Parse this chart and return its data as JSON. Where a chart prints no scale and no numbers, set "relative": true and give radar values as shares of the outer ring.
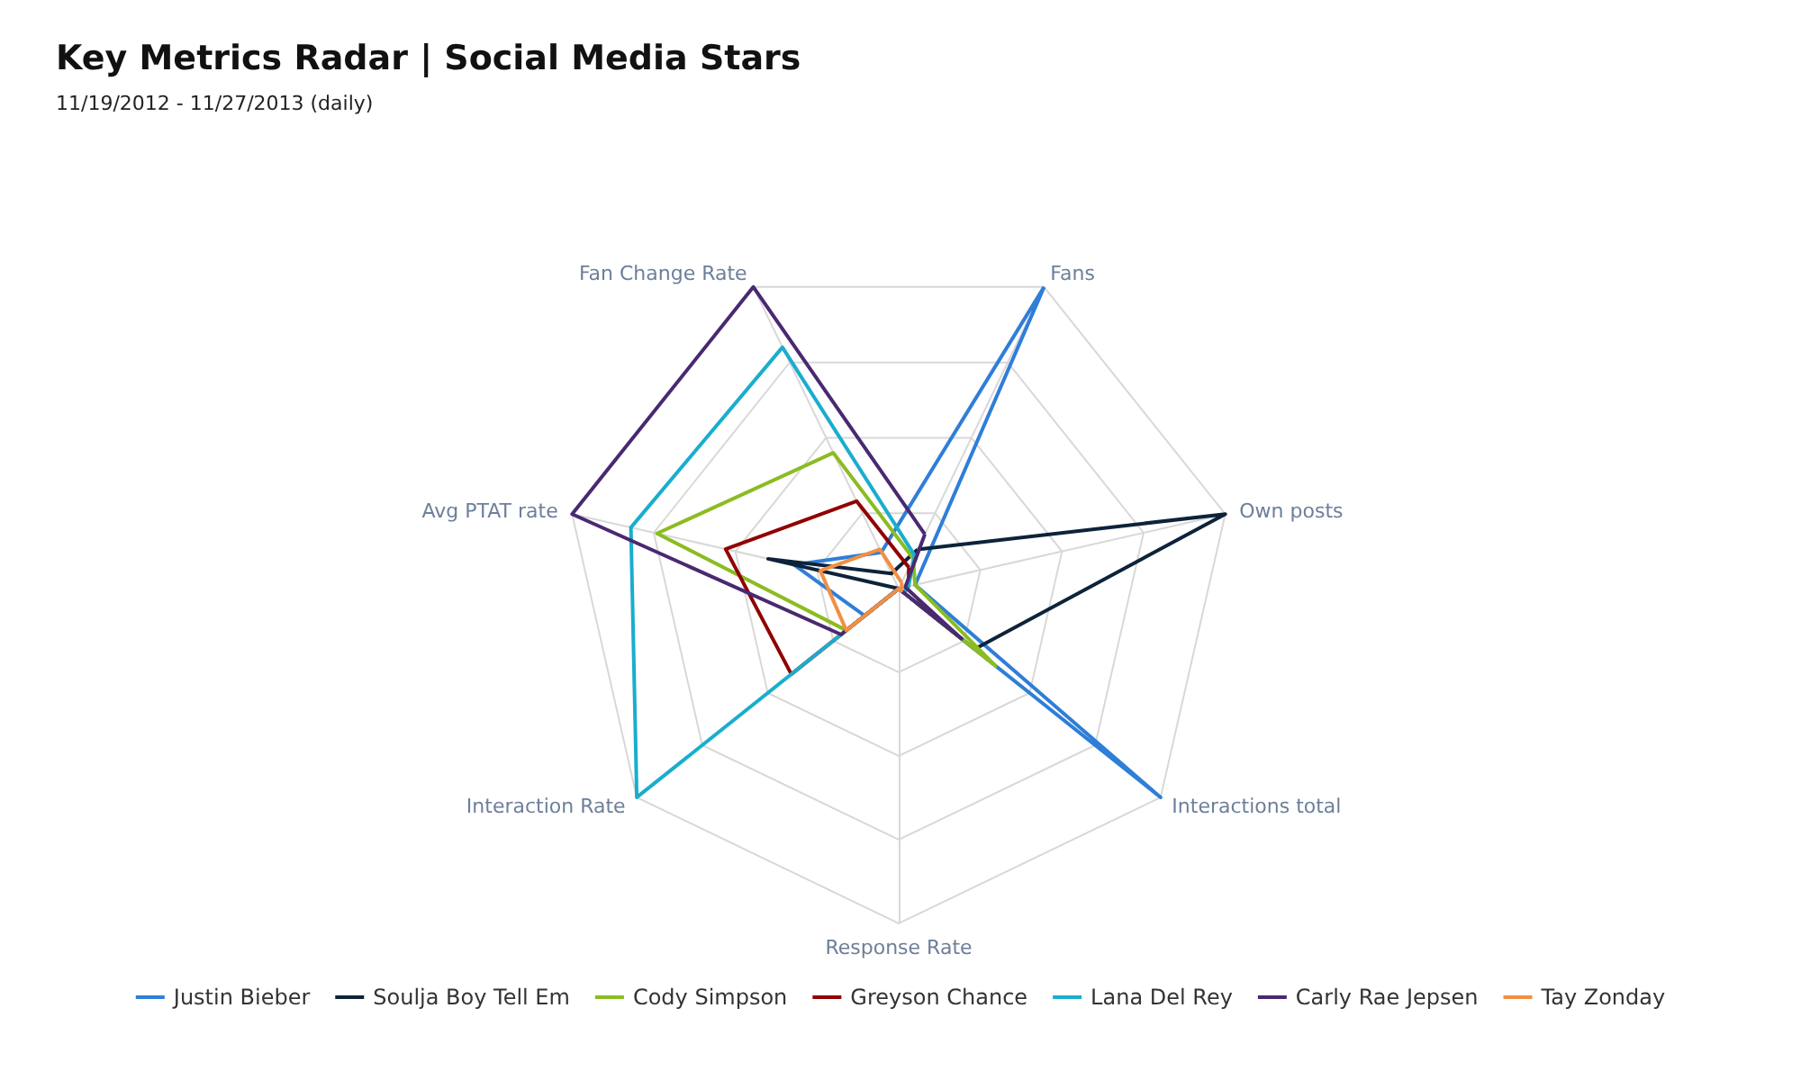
{
  "chart_data": {
    "type": "radar",
    "title": "Key Metrics Radar | Social Media Stars",
    "subtitle": "11/19/2012 - 11/27/2013 (daily)",
    "categories": [
      "Fans",
      "Own posts",
      "Interactions total",
      "Response Rate",
      "Interaction Rate",
      "Avg PTAT rate",
      "Fan Change Rate"
    ],
    "relative": true,
    "grid": true,
    "legend": "bottom",
    "marker": "none",
    "line_style": "solid",
    "series": [
      {
        "name": "Justin Bieber",
        "color": "#2f7ed8",
        "values": [
          1,
          0.05,
          1,
          0,
          0.13,
          0.32,
          0.12
        ]
      },
      {
        "name": "Soulja Boy Tell Em",
        "color": "#0d233a",
        "values": [
          0.13,
          1,
          0.29,
          0,
          0,
          0.4,
          0.05
        ]
      },
      {
        "name": "Cody Simpson",
        "color": "#8bbc21",
        "values": [
          0.1,
          0.05,
          0.37,
          0,
          0.2,
          0.74,
          0.45
        ]
      },
      {
        "name": "Greyson Chance",
        "color": "#910000",
        "values": [
          0.07,
          0.03,
          0.02,
          0,
          0.41,
          0.53,
          0.29
        ]
      },
      {
        "name": "Lana Del Rey",
        "color": "#1aadce",
        "values": [
          0.11,
          0.03,
          0.02,
          0,
          1,
          0.82,
          0.8
        ]
      },
      {
        "name": "Carly Rae Jepsen",
        "color": "#492970",
        "values": [
          0.18,
          0.02,
          0.24,
          0,
          0.22,
          1,
          1
        ]
      },
      {
        "name": "Tay Zonday",
        "color": "#f28f43",
        "values": [
          0.02,
          0.01,
          0.01,
          0,
          0.2,
          0.24,
          0.13
        ]
      }
    ]
  }
}
